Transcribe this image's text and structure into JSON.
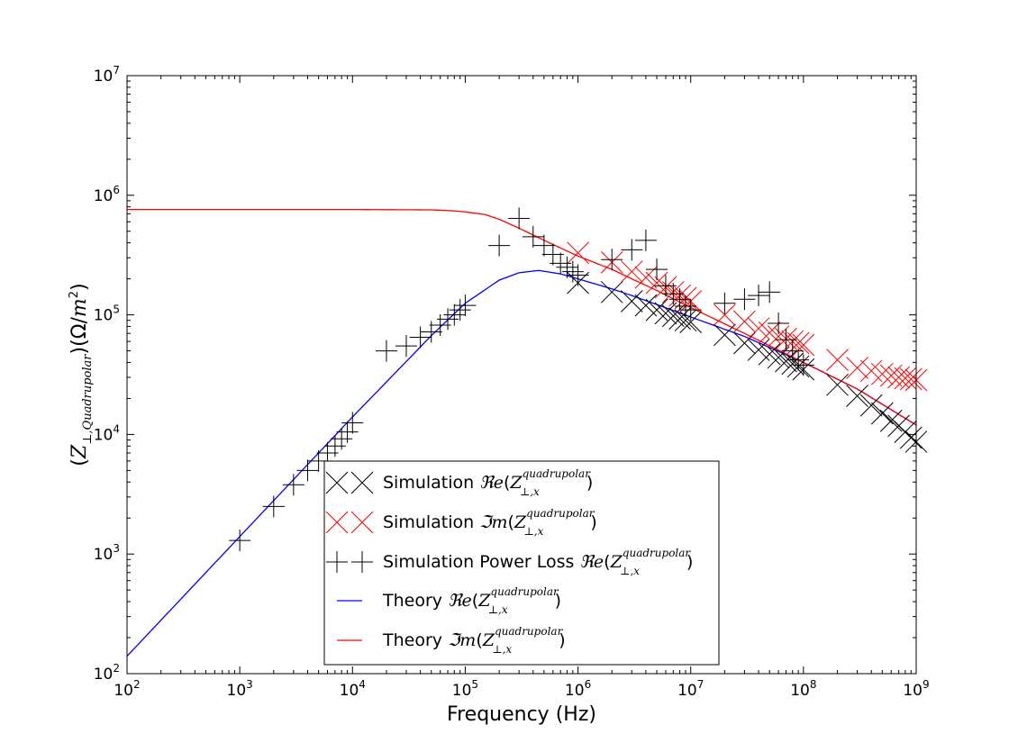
{
  "chart_data": {
    "type": "scatter",
    "title": "",
    "xlabel": "Frequency (Hz)",
    "ylabel": "(Z⊥,Quadrupolar)(Ω/m²)",
    "x_scale": "log",
    "y_scale": "log",
    "xlim": [
      100,
      1000000000
    ],
    "ylim": [
      100,
      10000000
    ],
    "grid": false,
    "legend_position": "lower-center",
    "x_ticks": [
      {
        "base": "10",
        "exp": "2",
        "value": 100
      },
      {
        "base": "10",
        "exp": "3",
        "value": 1000
      },
      {
        "base": "10",
        "exp": "4",
        "value": 10000
      },
      {
        "base": "10",
        "exp": "5",
        "value": 100000
      },
      {
        "base": "10",
        "exp": "6",
        "value": 1000000
      },
      {
        "base": "10",
        "exp": "7",
        "value": 10000000
      },
      {
        "base": "10",
        "exp": "8",
        "value": 100000000
      },
      {
        "base": "10",
        "exp": "9",
        "value": 1000000000
      }
    ],
    "y_ticks": [
      {
        "base": "10",
        "exp": "2",
        "value": 100
      },
      {
        "base": "10",
        "exp": "3",
        "value": 1000
      },
      {
        "base": "10",
        "exp": "4",
        "value": 10000
      },
      {
        "base": "10",
        "exp": "5",
        "value": 100000
      },
      {
        "base": "10",
        "exp": "6",
        "value": 1000000
      },
      {
        "base": "10",
        "exp": "7",
        "value": 10000000
      }
    ],
    "series": [
      {
        "name": "Simulation ℜe(Z⊥,x^quadrupolar)",
        "legend_prefix": "Simulation ",
        "legend_op": "ℜe",
        "marker": "x",
        "color": "#000000",
        "kind": "markers",
        "points": [
          [
            1000000,
            185000
          ],
          [
            2000000,
            155000
          ],
          [
            3000000,
            130000
          ],
          [
            4000000,
            120000
          ],
          [
            5000000,
            110000
          ],
          [
            6000000,
            103000
          ],
          [
            7000000,
            98000
          ],
          [
            8000000,
            93000
          ],
          [
            9000000,
            90000
          ],
          [
            10000000,
            87000
          ],
          [
            20000000,
            68000
          ],
          [
            30000000,
            58000
          ],
          [
            40000000,
            51000
          ],
          [
            50000000,
            47000
          ],
          [
            60000000,
            44000
          ],
          [
            70000000,
            41000
          ],
          [
            80000000,
            39000
          ],
          [
            90000000,
            37000
          ],
          [
            100000000,
            35000
          ],
          [
            200000000,
            26000
          ],
          [
            300000000,
            21000
          ],
          [
            400000000,
            17500
          ],
          [
            500000000,
            15000
          ],
          [
            600000000,
            13000
          ],
          [
            700000000,
            11800
          ],
          [
            800000000,
            10500
          ],
          [
            900000000,
            9400
          ],
          [
            1000000000,
            8700
          ]
        ]
      },
      {
        "name": "Simulation ℑm(Z⊥,x^quadrupolar)",
        "legend_prefix": "Simulation ",
        "legend_op": "ℑm",
        "marker": "x",
        "color": "#ff0000",
        "kind": "markers",
        "points": [
          [
            1000000,
            330000
          ],
          [
            2000000,
            275000
          ],
          [
            3000000,
            230000
          ],
          [
            4000000,
            205000
          ],
          [
            5000000,
            185000
          ],
          [
            6000000,
            170000
          ],
          [
            7000000,
            155000
          ],
          [
            8000000,
            145000
          ],
          [
            9000000,
            138000
          ],
          [
            10000000,
            130000
          ],
          [
            20000000,
            100000
          ],
          [
            30000000,
            88000
          ],
          [
            40000000,
            77000
          ],
          [
            50000000,
            71000
          ],
          [
            60000000,
            66000
          ],
          [
            70000000,
            63000
          ],
          [
            80000000,
            60000
          ],
          [
            90000000,
            58000
          ],
          [
            100000000,
            56000
          ],
          [
            200000000,
            42000
          ],
          [
            300000000,
            36000
          ],
          [
            400000000,
            34000
          ],
          [
            500000000,
            32000
          ],
          [
            600000000,
            31000
          ],
          [
            700000000,
            30000
          ],
          [
            800000000,
            29500
          ],
          [
            900000000,
            29000
          ],
          [
            1000000000,
            28500
          ]
        ]
      },
      {
        "name": "Simulation Power Loss ℜe(Z⊥,x^quadrupolar)",
        "legend_prefix": "Simulation Power Loss ",
        "legend_op": "ℜe",
        "marker": "+",
        "color": "#000000",
        "kind": "markers",
        "points": [
          [
            1000,
            1300
          ],
          [
            2000,
            2500
          ],
          [
            3000,
            3800
          ],
          [
            4000,
            5000
          ],
          [
            5000,
            6000
          ],
          [
            6000,
            7000
          ],
          [
            7000,
            8000
          ],
          [
            8000,
            9200
          ],
          [
            9000,
            10500
          ],
          [
            10000,
            12500
          ],
          [
            20000,
            50000
          ],
          [
            30000,
            55000
          ],
          [
            40000,
            65000
          ],
          [
            50000,
            72000
          ],
          [
            60000,
            82000
          ],
          [
            70000,
            92000
          ],
          [
            80000,
            100000
          ],
          [
            90000,
            110000
          ],
          [
            100000,
            120000
          ],
          [
            200000,
            380000
          ],
          [
            300000,
            640000
          ],
          [
            400000,
            450000
          ],
          [
            500000,
            380000
          ],
          [
            600000,
            320000
          ],
          [
            700000,
            270000
          ],
          [
            800000,
            250000
          ],
          [
            900000,
            230000
          ],
          [
            1000000,
            215000
          ],
          [
            2000000,
            290000
          ],
          [
            3000000,
            350000
          ],
          [
            4000000,
            420000
          ],
          [
            5000000,
            240000
          ],
          [
            6000000,
            175000
          ],
          [
            7000000,
            150000
          ],
          [
            8000000,
            135000
          ],
          [
            9000000,
            118000
          ],
          [
            10000000,
            110000
          ],
          [
            20000000,
            125000
          ],
          [
            30000000,
            135000
          ],
          [
            40000000,
            145000
          ],
          [
            50000000,
            155000
          ],
          [
            60000000,
            85000
          ],
          [
            70000000,
            62000
          ],
          [
            80000000,
            50000
          ],
          [
            90000000,
            42000
          ],
          [
            100000000,
            38000
          ]
        ]
      },
      {
        "name": "Theory ℜe(Z⊥,x^quadrupolar)",
        "legend_prefix": "Theory ",
        "legend_op": "ℜe",
        "color": "#0000ff",
        "kind": "line",
        "points": [
          [
            100,
            140
          ],
          [
            1000,
            1400
          ],
          [
            10000,
            14000
          ],
          [
            50000,
            67000
          ],
          [
            100000,
            125000
          ],
          [
            200000,
            195000
          ],
          [
            300000,
            225000
          ],
          [
            450000,
            235000
          ],
          [
            700000,
            220000
          ],
          [
            1000000,
            200000
          ],
          [
            2000000,
            165000
          ],
          [
            3000000,
            145000
          ],
          [
            5000000,
            122000
          ],
          [
            10000000,
            96000
          ],
          [
            30000000,
            66000
          ],
          [
            100000000,
            40000
          ],
          [
            300000000,
            24000
          ],
          [
            1000000000,
            12000
          ]
        ]
      },
      {
        "name": "Theory ℑm(Z⊥,x^quadrupolar)",
        "legend_prefix": "Theory ",
        "legend_op": "ℑm",
        "color": "#ff0000",
        "kind": "line",
        "points": [
          [
            100,
            760000
          ],
          [
            1000,
            760000
          ],
          [
            10000,
            760000
          ],
          [
            50000,
            755000
          ],
          [
            80000,
            740000
          ],
          [
            100000,
            725000
          ],
          [
            150000,
            690000
          ],
          [
            200000,
            630000
          ],
          [
            300000,
            530000
          ],
          [
            500000,
            420000
          ],
          [
            1000000,
            310000
          ],
          [
            2000000,
            240000
          ],
          [
            3000000,
            200000
          ],
          [
            5000000,
            160000
          ],
          [
            10000000,
            115000
          ],
          [
            30000000,
            70000
          ],
          [
            100000000,
            40000
          ],
          [
            300000000,
            24000
          ],
          [
            1000000000,
            12000
          ]
        ]
      }
    ]
  },
  "legend_common": {
    "paren_open": "(",
    "paren_close": ")",
    "z": "Z",
    "sub": "⊥,x",
    "sup": "quadrupolar"
  },
  "axis_ylabel_parts": {
    "open1": "(",
    "z": "Z",
    "sub": "⊥,Quadrupolar",
    "close1": ")",
    "mid": "(Ω/",
    "m": "m",
    "sup": "2",
    "close2": ")"
  }
}
